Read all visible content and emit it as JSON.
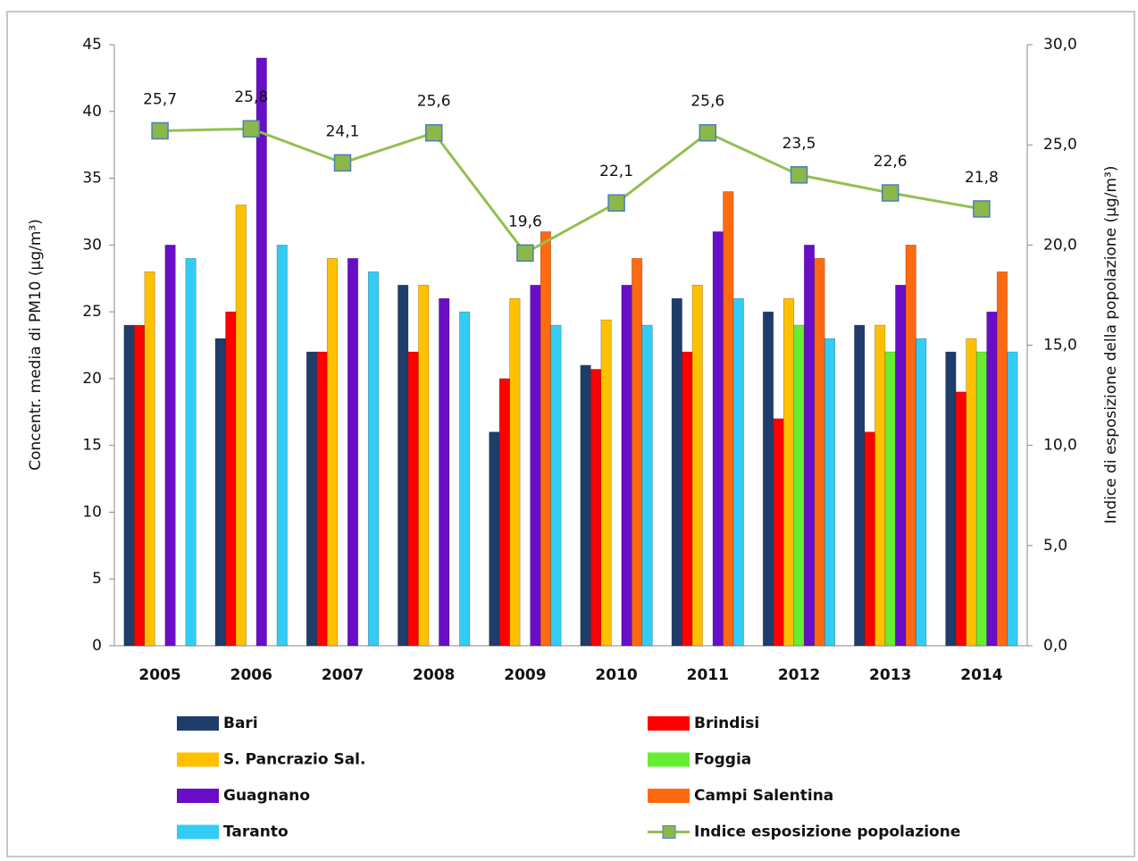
{
  "chart_data": {
    "type": "bar",
    "y_label": "Concentr. media di PM10 (µg/m³)",
    "y2_label": "Indice di esposizione della popolazione (µg/m³)",
    "categories": [
      "2005",
      "2006",
      "2007",
      "2008",
      "2009",
      "2010",
      "2011",
      "2012",
      "2013",
      "2014"
    ],
    "ylim": [
      0,
      45
    ],
    "yticks": [
      0,
      5,
      10,
      15,
      20,
      25,
      30,
      35,
      40,
      45
    ],
    "y2lim": [
      0,
      30
    ],
    "y2ticks": [
      {
        "value": 0,
        "label": "0,0"
      },
      {
        "value": 5,
        "label": "5,0"
      },
      {
        "value": 10,
        "label": "10,0"
      },
      {
        "value": 15,
        "label": "15,0"
      },
      {
        "value": 20,
        "label": "20,0"
      },
      {
        "value": 25,
        "label": "25,0"
      },
      {
        "value": 30,
        "label": "30,0"
      }
    ],
    "series": [
      {
        "name": "Bari",
        "color": "#1f3d6b",
        "values": [
          24,
          23,
          22,
          27,
          16,
          21,
          26,
          25,
          24,
          22
        ]
      },
      {
        "name": "Brindisi",
        "color": "#ff0000",
        "values": [
          24,
          25,
          22,
          22,
          20,
          20.7,
          22,
          17,
          16,
          19
        ]
      },
      {
        "name": "S. Pancrazio Sal.",
        "color": "#ffc000",
        "values": [
          28,
          33,
          29,
          27,
          26,
          24.4,
          27,
          26,
          24,
          23
        ]
      },
      {
        "name": "Foggia",
        "color": "#66ee33",
        "values": [
          null,
          null,
          null,
          null,
          null,
          null,
          null,
          24,
          22,
          22
        ]
      },
      {
        "name": "Guagnano",
        "color": "#6a0dc8",
        "values": [
          30,
          44,
          29,
          26,
          27,
          27,
          31,
          30,
          27,
          25
        ]
      },
      {
        "name": "Campi Salentina",
        "color": "#ff6a10",
        "values": [
          null,
          null,
          null,
          null,
          31,
          29,
          34,
          29,
          30,
          28
        ]
      },
      {
        "name": "Taranto",
        "color": "#33ccf5",
        "values": [
          29,
          30,
          28,
          25,
          24,
          24,
          26,
          23,
          23,
          22
        ]
      },
      {
        "name": "Indice esposizione popolazione",
        "type": "line",
        "axis": "y2",
        "color": "#92c050",
        "marker_color": "#8cb84a",
        "values": [
          25.7,
          25.8,
          24.1,
          25.6,
          19.6,
          22.1,
          25.6,
          23.5,
          22.6,
          21.8
        ],
        "value_labels": [
          "25,7",
          "25,8",
          "24,1",
          "25,6",
          "19,6",
          "22,1",
          "25,6",
          "23,5",
          "22,6",
          "21,8"
        ]
      }
    ]
  }
}
